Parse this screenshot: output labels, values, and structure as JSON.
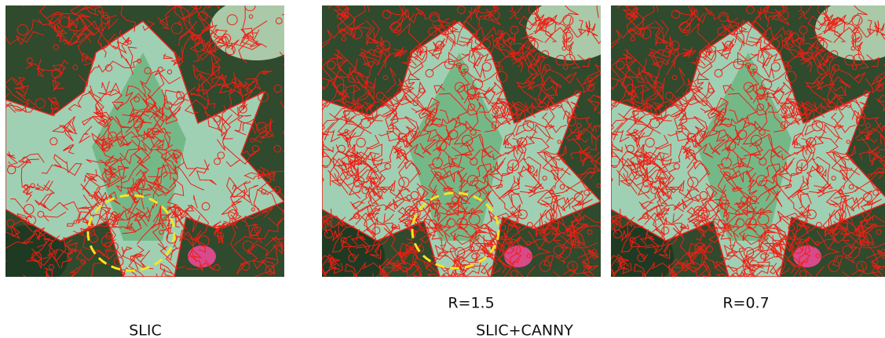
{
  "sublabels": [
    "R=1.5",
    "R=0.7"
  ],
  "captions": [
    "SLIC",
    "SLIC+CANNY"
  ]
}
